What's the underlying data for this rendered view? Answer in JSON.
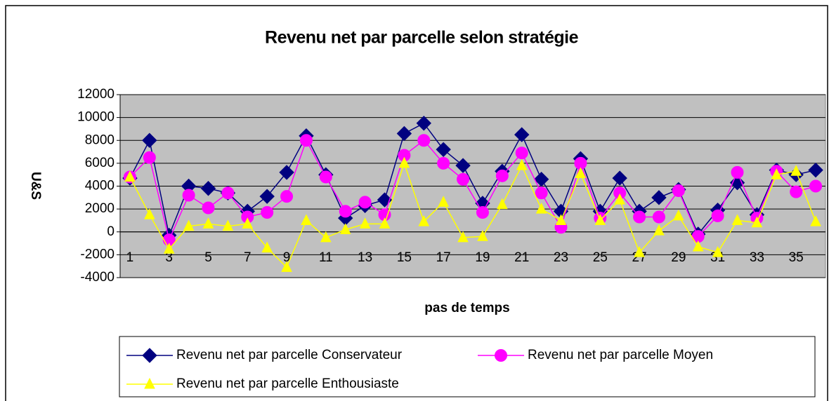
{
  "chart_data": {
    "type": "line",
    "title": "Revenu net par parcelle selon stratégie",
    "x_label": "pas de temps",
    "y_label": "U&S",
    "categories": [
      1,
      null,
      3,
      null,
      5,
      null,
      7,
      null,
      9,
      null,
      11,
      null,
      13,
      null,
      15,
      null,
      17,
      null,
      19,
      null,
      21,
      null,
      23,
      null,
      25,
      null,
      27,
      null,
      29,
      null,
      31,
      null,
      33,
      null,
      35,
      null
    ],
    "series": [
      {
        "name": "Revenu net par parcelle Conservateur",
        "color": "#000080",
        "marker": "diamond",
        "values": [
          4700,
          8000,
          -300,
          4000,
          3800,
          3400,
          1800,
          3100,
          5200,
          8400,
          5000,
          1200,
          2300,
          2800,
          8600,
          9500,
          7200,
          5800,
          2500,
          5300,
          8500,
          4600,
          1800,
          6400,
          1800,
          4700,
          1800,
          3000,
          3700,
          -200,
          1900,
          4300,
          1500,
          5400,
          5000,
          5400
        ]
      },
      {
        "name": "Revenu net par parcelle Moyen",
        "color": "#ff00ff",
        "marker": "circle",
        "values": [
          4800,
          6500,
          -700,
          3200,
          2100,
          3400,
          1300,
          1700,
          3100,
          8000,
          4800,
          1800,
          2600,
          1500,
          6700,
          8000,
          6000,
          4600,
          1700,
          4900,
          6900,
          3400,
          400,
          6000,
          1200,
          3400,
          1300,
          1300,
          3600,
          -400,
          1400,
          5200,
          1200,
          5300,
          3500,
          4000
        ]
      },
      {
        "name": "Revenu net par parcelle Enthousiaste",
        "color": "#ffff00",
        "marker": "triangle",
        "values": [
          4800,
          1500,
          -1500,
          500,
          700,
          500,
          700,
          -1400,
          -3100,
          1000,
          -500,
          200,
          700,
          700,
          6000,
          900,
          2600,
          -500,
          -400,
          2400,
          5800,
          2000,
          1000,
          5100,
          1000,
          2800,
          -1800,
          100,
          1400,
          -1300,
          -1800,
          1000,
          800,
          5000,
          5300,
          900
        ]
      }
    ],
    "ylim": [
      -4000,
      12000
    ],
    "yticks": [
      -4000,
      -2000,
      0,
      2000,
      4000,
      6000,
      8000,
      10000,
      12000
    ],
    "grid": true,
    "legend": "bottom",
    "plot_background": "#c0c0c0"
  }
}
